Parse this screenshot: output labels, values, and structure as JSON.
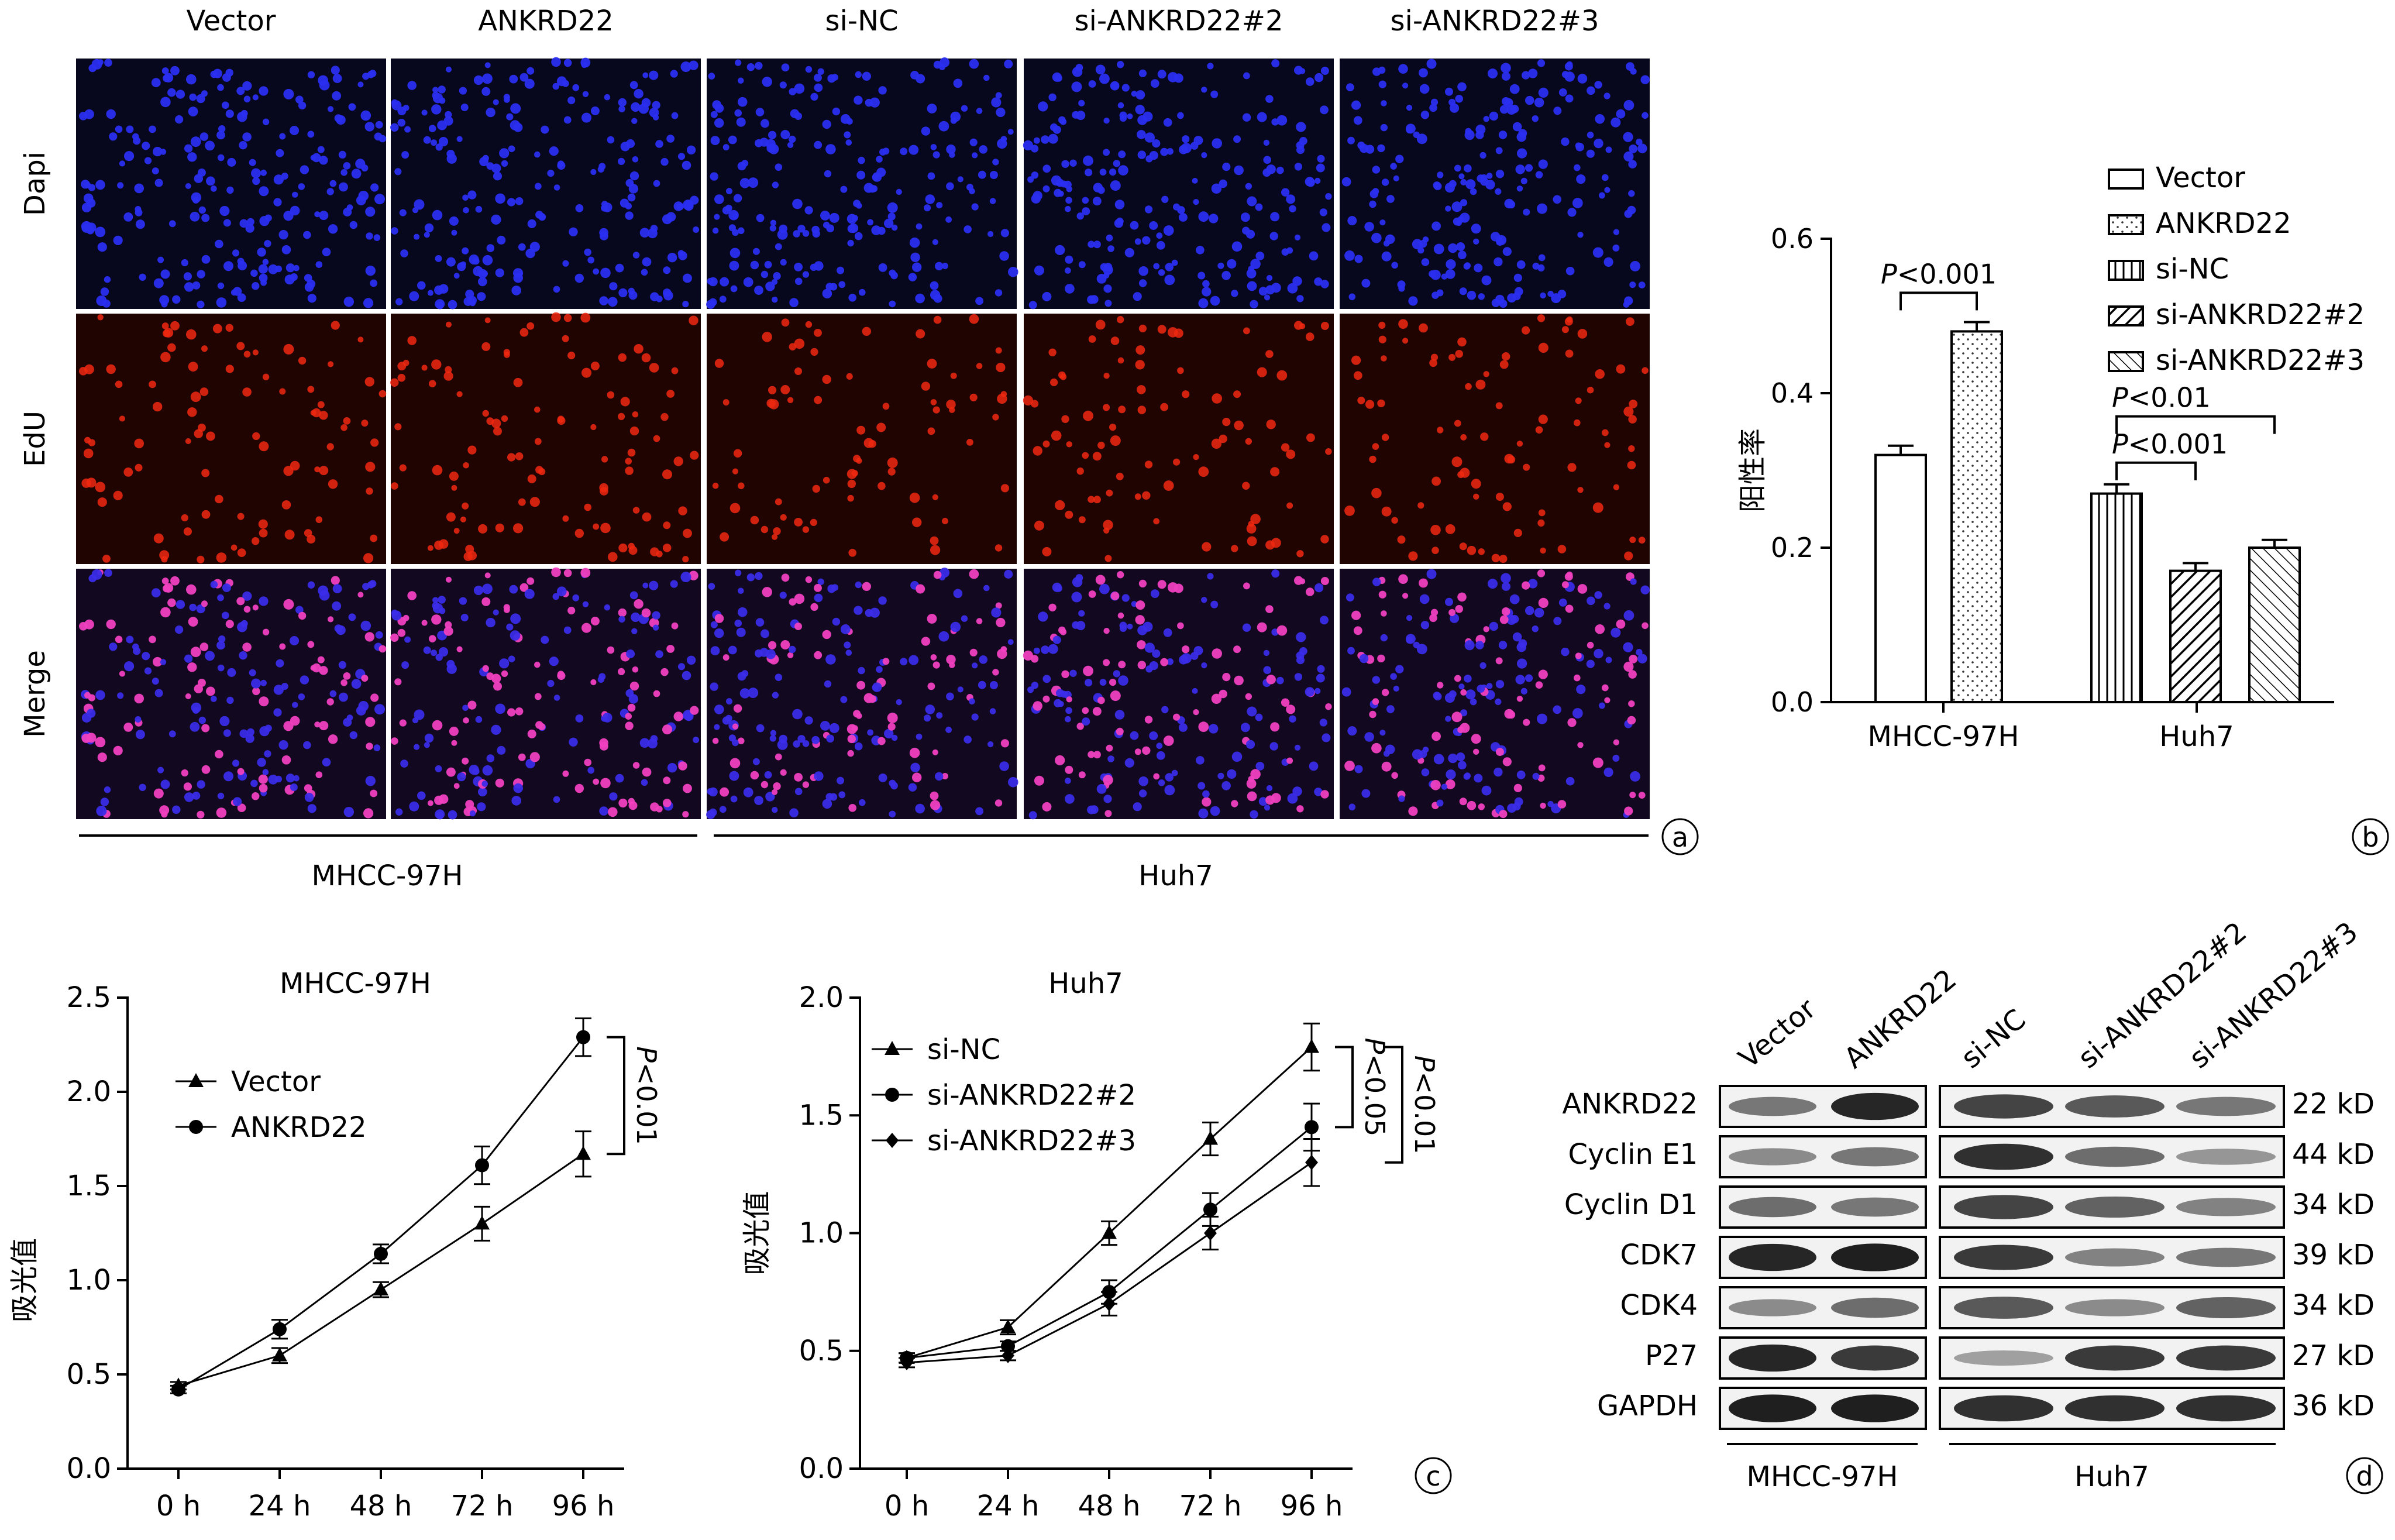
{
  "panel_a": {
    "columns": [
      "Vector",
      "ANKRD22",
      "si-NC",
      "si-ANKRD22#2",
      "si-ANKRD22#3"
    ],
    "rows": [
      "Dapi",
      "EdU",
      "Merge"
    ],
    "groups": [
      "MHCC-97H",
      "Huh7"
    ],
    "letter": "a",
    "colors": {
      "dapi_bg": "#07071e",
      "dapi_cell": "#2a2ef0",
      "edu_bg": "#1f0402",
      "edu_cell": "#f02810",
      "merge_bg": "#120820",
      "merge_cell": "#3a2ce8",
      "merge_pink": "#f040c0"
    }
  },
  "panel_b": {
    "letter": "b",
    "chart_data": {
      "type": "bar",
      "ylabel": "阳性率",
      "ylim": [
        0,
        0.6
      ],
      "yticks": [
        "0.0",
        "0.2",
        "0.4",
        "0.6"
      ],
      "categories": [
        "MHCC-97H",
        "Huh7"
      ],
      "series": [
        {
          "name": "Vector",
          "group": "MHCC-97H",
          "value": 0.32,
          "error": 0.012
        },
        {
          "name": "ANKRD22",
          "group": "MHCC-97H",
          "value": 0.48,
          "error": 0.012
        },
        {
          "name": "si-NC",
          "group": "Huh7",
          "value": 0.27,
          "error": 0.012
        },
        {
          "name": "si-ANKRD22#2",
          "group": "Huh7",
          "value": 0.17,
          "error": 0.01
        },
        {
          "name": "si-ANKRD22#3",
          "group": "Huh7",
          "value": 0.2,
          "error": 0.01
        }
      ],
      "annotations": [
        {
          "p": "P",
          "text": "<0.001",
          "from": "Vector",
          "to": "ANKRD22",
          "level": 0.53
        },
        {
          "p": "P",
          "text": "<0.001",
          "from": "si-NC",
          "to": "si-ANKRD22#2",
          "level": 0.31
        },
        {
          "p": "P",
          "text": "<0.01",
          "from": "si-NC",
          "to": "si-ANKRD22#3",
          "level": 0.37
        }
      ]
    }
  },
  "panel_c": {
    "letter": "c",
    "chart_data": [
      {
        "type": "line",
        "title": "MHCC-97H",
        "ylabel": "吸光值",
        "ylim": [
          0,
          2.5
        ],
        "yticks": [
          "0.0",
          "0.5",
          "1.0",
          "1.5",
          "2.0",
          "2.5"
        ],
        "x": [
          "0 h",
          "24 h",
          "48 h",
          "72 h",
          "96 h"
        ],
        "series": [
          {
            "name": "Vector",
            "marker": "triangle",
            "values": [
              0.44,
              0.6,
              0.95,
              1.3,
              1.67
            ],
            "errors": [
              0.02,
              0.04,
              0.04,
              0.09,
              0.12
            ]
          },
          {
            "name": "ANKRD22",
            "marker": "circle",
            "values": [
              0.42,
              0.74,
              1.14,
              1.61,
              2.29
            ],
            "errors": [
              0.02,
              0.05,
              0.05,
              0.1,
              0.1
            ]
          }
        ],
        "annotations": [
          {
            "text": "P<0.01",
            "from": 2.29,
            "to": 1.67
          }
        ]
      },
      {
        "type": "line",
        "title": "Huh7",
        "ylabel": "吸光值",
        "ylim": [
          0,
          2.0
        ],
        "yticks": [
          "0.0",
          "0.5",
          "1.0",
          "1.5",
          "2.0"
        ],
        "x": [
          "0 h",
          "24 h",
          "48 h",
          "72 h",
          "96 h"
        ],
        "series": [
          {
            "name": "si-NC",
            "marker": "triangle",
            "values": [
              0.47,
              0.6,
              1.0,
              1.4,
              1.79
            ],
            "errors": [
              0.02,
              0.03,
              0.05,
              0.07,
              0.1
            ]
          },
          {
            "name": "si-ANKRD22#2",
            "marker": "circle",
            "values": [
              0.47,
              0.52,
              0.75,
              1.1,
              1.45
            ],
            "errors": [
              0.02,
              0.02,
              0.05,
              0.07,
              0.1
            ]
          },
          {
            "name": "si-ANKRD22#3",
            "marker": "diamond",
            "values": [
              0.45,
              0.48,
              0.7,
              1.0,
              1.3
            ],
            "errors": [
              0.02,
              0.02,
              0.05,
              0.07,
              0.1
            ]
          }
        ],
        "annotations": [
          {
            "text": "P<0.05",
            "from": 1.79,
            "to": 1.45
          },
          {
            "text": "P<0.01",
            "from": 1.79,
            "to": 1.3
          }
        ]
      }
    ]
  },
  "panel_d": {
    "letter": "d",
    "lanes": [
      "Vector",
      "ANKRD22",
      "si-NC",
      "si-ANKRD22#2",
      "si-ANKRD22#3"
    ],
    "proteins": [
      {
        "name": "ANKRD22",
        "size": "22 kD",
        "intensity": [
          0.55,
          0.95,
          0.8,
          0.7,
          0.55
        ]
      },
      {
        "name": "Cyclin E1",
        "size": "44 kD",
        "intensity": [
          0.45,
          0.55,
          0.9,
          0.6,
          0.4
        ]
      },
      {
        "name": "Cyclin D1",
        "size": "34 kD",
        "intensity": [
          0.6,
          0.55,
          0.8,
          0.65,
          0.5
        ]
      },
      {
        "name": "CDK7",
        "size": "39 kD",
        "intensity": [
          0.95,
          0.98,
          0.85,
          0.5,
          0.55
        ]
      },
      {
        "name": "CDK4",
        "size": "34 kD",
        "intensity": [
          0.45,
          0.6,
          0.7,
          0.45,
          0.65
        ]
      },
      {
        "name": "P27",
        "size": "27 kD",
        "intensity": [
          0.95,
          0.85,
          0.35,
          0.85,
          0.85
        ]
      },
      {
        "name": "GAPDH",
        "size": "36 kD",
        "intensity": [
          0.98,
          0.98,
          0.9,
          0.9,
          0.9
        ]
      }
    ],
    "groups": [
      "MHCC-97H",
      "Huh7"
    ]
  }
}
